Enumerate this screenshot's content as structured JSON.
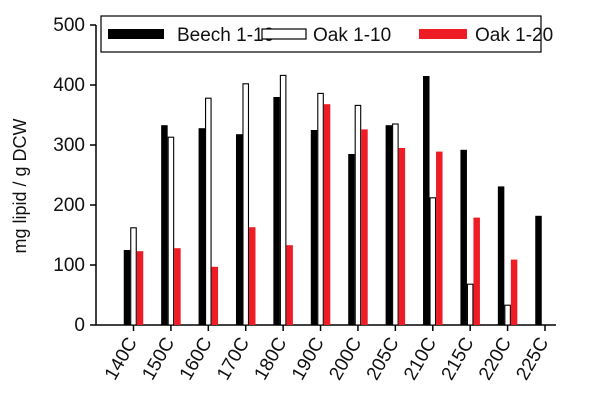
{
  "chart_data": {
    "type": "bar",
    "categories": [
      "140C",
      "150C",
      "160C",
      "170C",
      "180C",
      "190C",
      "200C",
      "205C",
      "210C",
      "215C",
      "220C",
      "225C"
    ],
    "series": [
      {
        "name": "Beech 1-10",
        "color": "#000000",
        "fill": "solid",
        "values": [
          125,
          333,
          328,
          318,
          380,
          325,
          285,
          333,
          415,
          292,
          231,
          182
        ]
      },
      {
        "name": "Oak 1-10",
        "color": "#000000",
        "fill": "outline",
        "values": [
          162,
          313,
          378,
          402,
          416,
          386,
          366,
          335,
          212,
          68,
          33,
          null
        ]
      },
      {
        "name": "Oak 1-20",
        "color": "#ee1c25",
        "fill": "solid",
        "values": [
          123,
          128,
          97,
          163,
          133,
          368,
          326,
          295,
          289,
          179,
          109,
          null
        ]
      }
    ],
    "xlabel": "",
    "ylabel": "mg lipid / g  DCW",
    "ylim": [
      0,
      500
    ],
    "yticks": [
      0,
      100,
      200,
      300,
      400,
      500
    ],
    "legend_position": "top",
    "grid": false
  }
}
